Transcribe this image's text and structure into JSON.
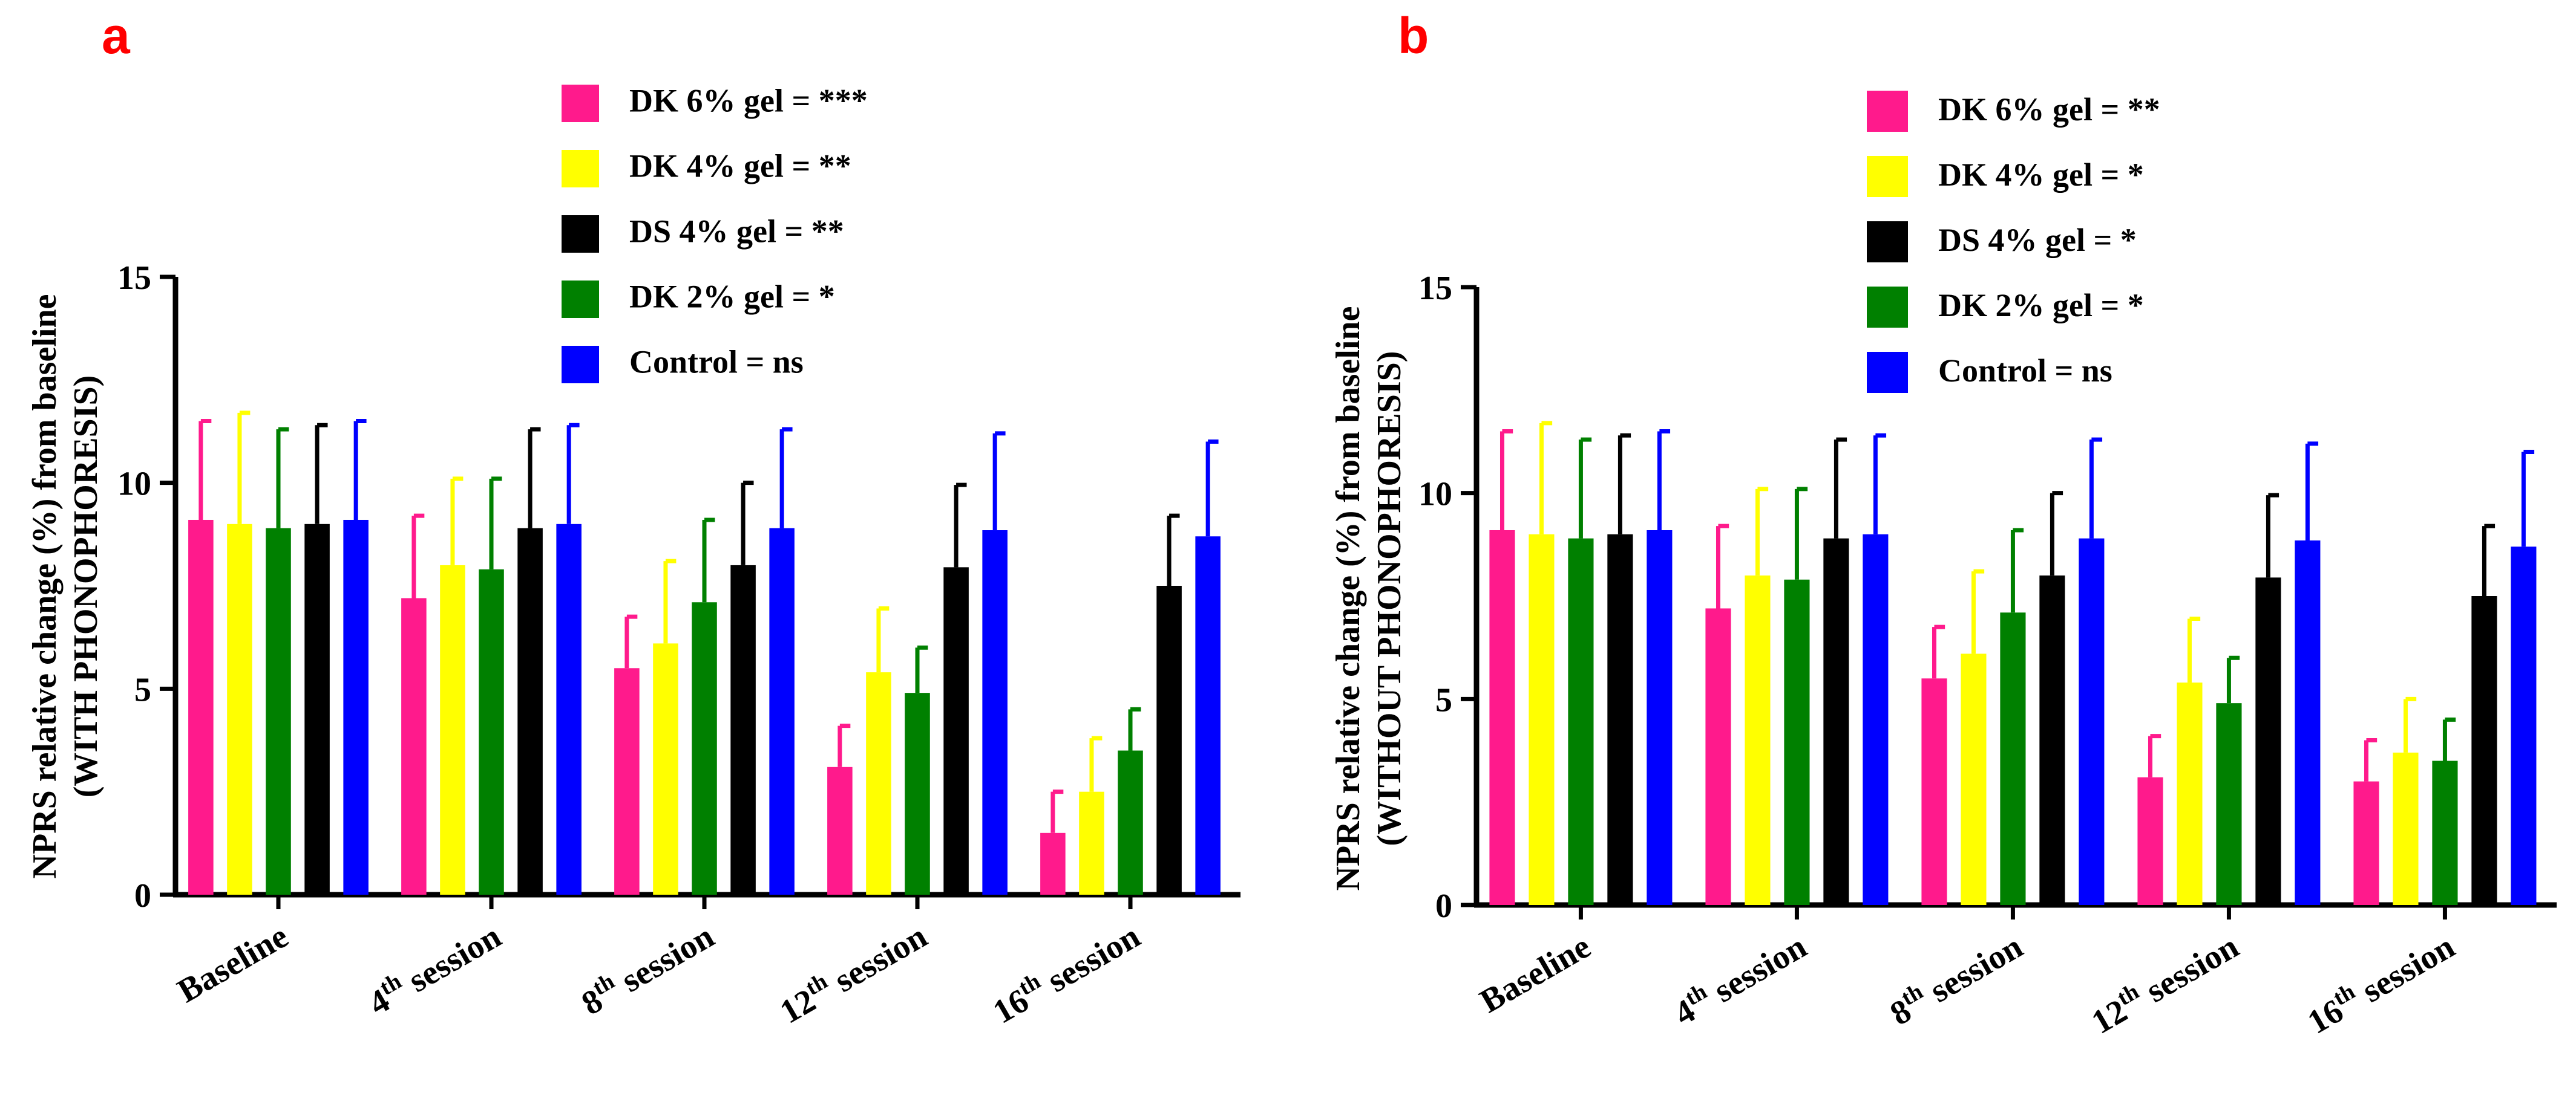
{
  "chart_data": [
    {
      "panel": "a",
      "type": "bar",
      "title": "",
      "ylabel": [
        "NPRS relative change (%) from baseline",
        "(WITH PHONOPHORESIS)"
      ],
      "xlabel": "",
      "ylim": [
        0,
        15
      ],
      "yticks": [
        "0",
        "5",
        "10",
        "15"
      ],
      "categories": [
        {
          "main": "Baseline",
          "sup": "",
          "rest": ""
        },
        {
          "main": "4",
          "sup": "th",
          "rest": " session"
        },
        {
          "main": "8",
          "sup": "th",
          "rest": " session"
        },
        {
          "main": "12",
          "sup": "th",
          "rest": " session"
        },
        {
          "main": "16",
          "sup": "th",
          "rest": " session"
        }
      ],
      "legend_position": "top-right",
      "series": [
        {
          "name": "DK 6% gel = ***",
          "color": "#ff1a8c",
          "values": [
            9.1,
            7.2,
            5.5,
            3.1,
            1.5
          ],
          "errors": [
            2.4,
            2.0,
            1.25,
            1.0,
            1.0
          ]
        },
        {
          "name": "DK 4% gel = **",
          "color": "#ffff00",
          "values": [
            9.0,
            8.0,
            6.1,
            5.4,
            2.5
          ],
          "errors": [
            2.7,
            2.1,
            2.0,
            1.55,
            1.3
          ]
        },
        {
          "name": "DK 2% gel = *",
          "color": "#008000",
          "values": [
            8.9,
            7.9,
            7.1,
            4.9,
            3.5
          ],
          "errors": [
            2.4,
            2.2,
            2.0,
            1.1,
            1.0
          ]
        },
        {
          "name": "DS 4% gel = **",
          "color": "#000000",
          "values": [
            9.0,
            8.9,
            8.0,
            7.95,
            7.5
          ],
          "errors": [
            2.4,
            2.4,
            2.0,
            2.0,
            1.7
          ]
        },
        {
          "name": "Control = ns",
          "color": "#0000ff",
          "values": [
            9.1,
            9.0,
            8.9,
            8.85,
            8.7
          ],
          "errors": [
            2.4,
            2.4,
            2.4,
            2.35,
            2.3
          ]
        }
      ],
      "legend_order": [
        0,
        1,
        3,
        2,
        4
      ]
    },
    {
      "panel": "b",
      "type": "bar",
      "title": "",
      "ylabel": [
        "NPRS relative change (%) from baseline",
        "(WITHOUT PHONOPHORESIS)"
      ],
      "xlabel": "",
      "ylim": [
        0,
        15
      ],
      "yticks": [
        "0",
        "5",
        "10",
        "15"
      ],
      "categories": [
        {
          "main": "Baseline",
          "sup": "",
          "rest": ""
        },
        {
          "main": "4",
          "sup": "th",
          "rest": " session"
        },
        {
          "main": "8",
          "sup": "th",
          "rest": " session"
        },
        {
          "main": "12",
          "sup": "th",
          "rest": " session"
        },
        {
          "main": "16",
          "sup": "th",
          "rest": " session"
        }
      ],
      "legend_position": "top-right",
      "series": [
        {
          "name": "DK 6% gel = **",
          "color": "#ff1a8c",
          "values": [
            9.1,
            7.2,
            5.5,
            3.1,
            3.0
          ],
          "errors": [
            2.4,
            2.0,
            1.25,
            1.0,
            1.0
          ]
        },
        {
          "name": "DK 4% gel = *",
          "color": "#ffff00",
          "values": [
            9.0,
            8.0,
            6.1,
            5.4,
            3.7
          ],
          "errors": [
            2.7,
            2.1,
            2.0,
            1.55,
            1.3
          ]
        },
        {
          "name": "DK 2% gel = *",
          "color": "#008000",
          "values": [
            8.9,
            7.9,
            7.1,
            4.9,
            3.5
          ],
          "errors": [
            2.4,
            2.2,
            2.0,
            1.1,
            1.0
          ]
        },
        {
          "name": "DS 4% gel = *",
          "color": "#000000",
          "values": [
            9.0,
            8.9,
            8.0,
            7.95,
            7.5
          ],
          "errors": [
            2.4,
            2.4,
            2.0,
            2.0,
            1.7
          ]
        },
        {
          "name": "Control = ns",
          "color": "#0000ff",
          "values": [
            9.1,
            9.0,
            8.9,
            8.85,
            8.7
          ],
          "errors": [
            2.4,
            2.4,
            2.4,
            2.35,
            2.3
          ]
        }
      ],
      "legend_order": [
        0,
        1,
        3,
        2,
        4
      ]
    }
  ]
}
